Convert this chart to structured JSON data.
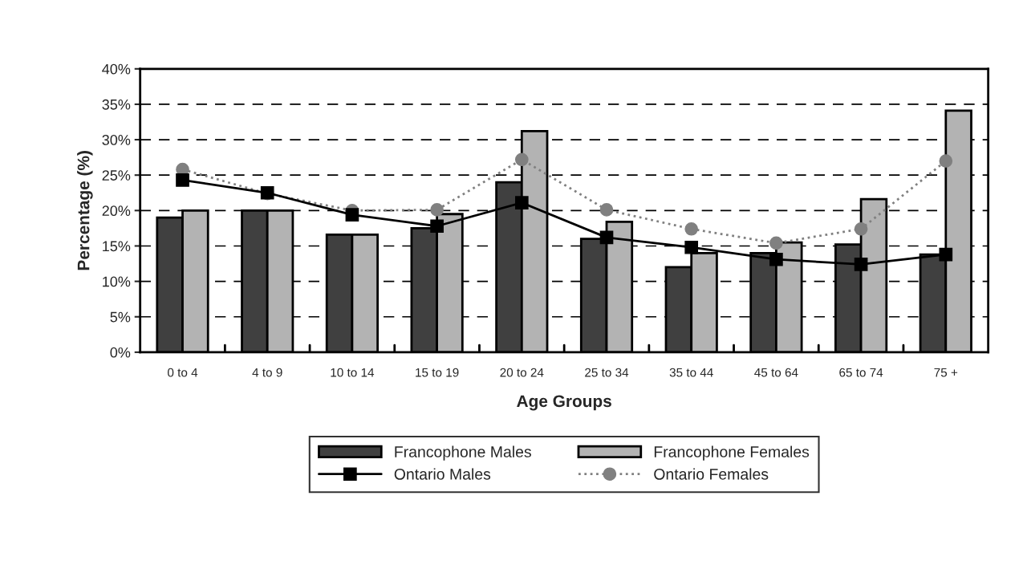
{
  "chart_data": {
    "type": "bar",
    "xlabel": "Age Groups",
    "ylabel": "Percentage (%)",
    "categories": [
      "0 to 4",
      "4 to 9",
      "10 to 14",
      "15 to 19",
      "20 to 24",
      "25 to 34",
      "35 to 44",
      "45 to 64",
      "65 to 74",
      "75 +"
    ],
    "series": [
      {
        "name": "Francophone Males",
        "color": "#404040",
        "values": [
          19,
          20,
          16.6,
          17.5,
          24,
          16,
          12,
          14,
          15.2,
          13.8
        ]
      },
      {
        "name": "Francophone Females",
        "color": "#b3b3b3",
        "values": [
          20,
          20,
          16.6,
          19.5,
          31.2,
          18.4,
          14,
          15.5,
          21.6,
          34.1
        ]
      },
      {
        "name": "Ontario Males",
        "type": "line",
        "color": "#000000",
        "marker": "square",
        "line_style": "solid",
        "values": [
          24.3,
          22.5,
          19.4,
          17.8,
          21.1,
          16.2,
          14.8,
          13.1,
          12.4,
          13.8
        ]
      },
      {
        "name": "Ontario Females",
        "type": "line",
        "color": "#808080",
        "marker": "circle",
        "line_style": "dotted",
        "values": [
          25.8,
          22.4,
          20,
          20.1,
          27.2,
          20.1,
          17.4,
          15.4,
          17.4,
          27
        ]
      }
    ],
    "ylim": [
      0,
      40
    ],
    "yticks": [
      {
        "value": 0,
        "label": "0%"
      },
      {
        "value": 5,
        "label": "5%"
      },
      {
        "value": 10,
        "label": "10%"
      },
      {
        "value": 15,
        "label": "15%"
      },
      {
        "value": 20,
        "label": "20%"
      },
      {
        "value": 25,
        "label": "25%"
      },
      {
        "value": 30,
        "label": "30%"
      },
      {
        "value": 35,
        "label": "35%"
      },
      {
        "value": 40,
        "label": "40%"
      }
    ],
    "grid": "y",
    "legend": "bottom"
  }
}
